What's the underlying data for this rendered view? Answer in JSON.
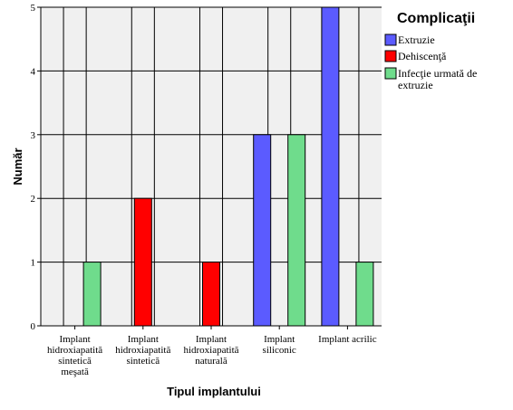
{
  "chart_data": {
    "type": "bar",
    "xlabel": "Tipul implantului",
    "ylabel": "Număr",
    "ylim": [
      0,
      5
    ],
    "yticks": [
      "0",
      "1",
      "2",
      "3",
      "4",
      "5"
    ],
    "grid": true,
    "legend_position": "top-right",
    "legend_title": "Complicaţii",
    "categories": [
      [
        "Implant",
        "hidroxiapatită",
        "sintetică",
        "meşată"
      ],
      [
        "Implant",
        "hidroxiapatită",
        "sintetică"
      ],
      [
        "Implant",
        "hidroxiapatită",
        "naturală"
      ],
      [
        "Implant",
        "siliconic"
      ],
      [
        "Implant acrilic"
      ]
    ],
    "series": [
      {
        "name": "Extruzie",
        "color": "#5b5bff",
        "values": [
          0,
          0,
          0,
          3,
          5
        ]
      },
      {
        "name": "Dehiscenţă",
        "color": "#ff0000",
        "values": [
          0,
          2,
          1,
          0,
          0
        ]
      },
      {
        "name": "Infecţie urmată de extruzie",
        "color": "#6fdc8c",
        "values": [
          1,
          0,
          0,
          3,
          1
        ]
      }
    ]
  }
}
